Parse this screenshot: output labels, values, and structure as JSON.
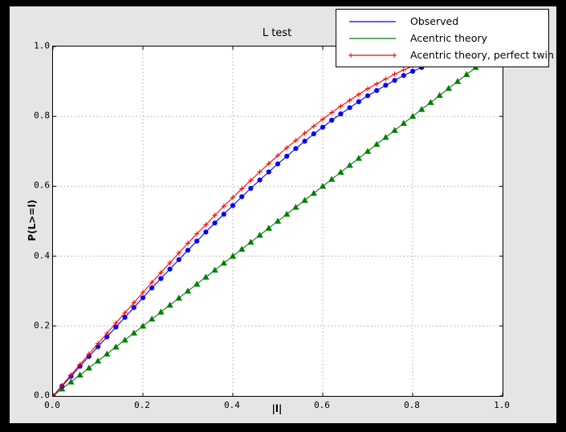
{
  "window": {
    "background": "#000000",
    "figure_background": "#e5e5e5",
    "plot_background": "#ffffff"
  },
  "chart_data": {
    "type": "line",
    "title": "L test",
    "xlabel": "|l|",
    "ylabel": "P(L>=l)",
    "xlim": [
      0.0,
      1.0
    ],
    "ylim": [
      0.0,
      1.0
    ],
    "grid": true,
    "grid_style": "dotted",
    "legend_position": "upper right",
    "xticks": {
      "values": [
        0.0,
        0.2,
        0.4,
        0.6,
        0.8,
        1.0
      ],
      "labels": [
        "0.0",
        "0.2",
        "0.4",
        "0.6",
        "0.8",
        "1.0"
      ]
    },
    "yticks": {
      "values": [
        0.0,
        0.2,
        0.4,
        0.6,
        0.8,
        1.0
      ],
      "labels": [
        "0.0",
        "0.2",
        "0.4",
        "0.6",
        "0.8",
        "1.0"
      ]
    },
    "x": [
      0,
      0.02,
      0.04,
      0.06,
      0.08,
      0.1,
      0.12,
      0.14,
      0.16,
      0.18,
      0.2,
      0.22,
      0.24,
      0.26,
      0.28,
      0.3,
      0.32,
      0.34,
      0.36,
      0.38,
      0.4,
      0.42,
      0.44,
      0.46,
      0.48,
      0.5,
      0.52,
      0.54,
      0.56,
      0.58,
      0.6,
      0.62,
      0.64,
      0.66,
      0.68,
      0.7,
      0.72,
      0.74,
      0.76,
      0.78,
      0.8,
      0.82,
      0.84,
      0.86,
      0.88,
      0.9,
      0.92,
      0.94,
      0.96,
      0.98,
      1
    ],
    "series": [
      {
        "name": "Acentric theory",
        "color": "#007f00",
        "marker": "triangle-up",
        "legend_marker": "none",
        "values": [
          0,
          0.02,
          0.04,
          0.06,
          0.08,
          0.1,
          0.12,
          0.14,
          0.16,
          0.18,
          0.2,
          0.22,
          0.24,
          0.26,
          0.28,
          0.3,
          0.32,
          0.34,
          0.36,
          0.38,
          0.4,
          0.42,
          0.44,
          0.46,
          0.48,
          0.5,
          0.52,
          0.54,
          0.56,
          0.58,
          0.6,
          0.62,
          0.64,
          0.66,
          0.68,
          0.7,
          0.72,
          0.74,
          0.76,
          0.78,
          0.8,
          0.82,
          0.84,
          0.86,
          0.88,
          0.9,
          0.92,
          0.94,
          0.96,
          0.98,
          1
        ]
      },
      {
        "name": "Observed",
        "color": "#0000ff",
        "marker": "circle",
        "legend_marker": "none",
        "values": [
          0,
          0.028,
          0.056,
          0.085,
          0.113,
          0.141,
          0.169,
          0.197,
          0.225,
          0.253,
          0.281,
          0.309,
          0.336,
          0.363,
          0.39,
          0.417,
          0.443,
          0.469,
          0.495,
          0.52,
          0.545,
          0.57,
          0.594,
          0.618,
          0.641,
          0.664,
          0.686,
          0.708,
          0.729,
          0.75,
          0.769,
          0.789,
          0.807,
          0.825,
          0.842,
          0.859,
          0.874,
          0.889,
          0.903,
          0.917,
          0.929,
          0.94,
          0.951,
          0.961,
          0.969,
          0.977,
          0.984,
          0.989,
          0.994,
          0.998,
          1
        ]
      },
      {
        "name": "Acentric theory, perfect twin",
        "color": "#ff0000",
        "marker": "plus",
        "legend_marker": "plus-ends",
        "values": [
          0,
          0.03,
          0.06,
          0.09,
          0.12,
          0.15,
          0.179,
          0.209,
          0.238,
          0.267,
          0.296,
          0.325,
          0.353,
          0.381,
          0.409,
          0.437,
          0.464,
          0.49,
          0.517,
          0.543,
          0.568,
          0.593,
          0.617,
          0.641,
          0.665,
          0.688,
          0.71,
          0.731,
          0.752,
          0.772,
          0.792,
          0.811,
          0.829,
          0.846,
          0.863,
          0.879,
          0.893,
          0.907,
          0.921,
          0.933,
          0.944,
          0.954,
          0.964,
          0.972,
          0.979,
          0.986,
          0.991,
          0.995,
          0.998,
          0.999,
          1
        ]
      }
    ],
    "legend_order": [
      "Observed",
      "Acentric theory",
      "Acentric theory, perfect twin"
    ]
  }
}
